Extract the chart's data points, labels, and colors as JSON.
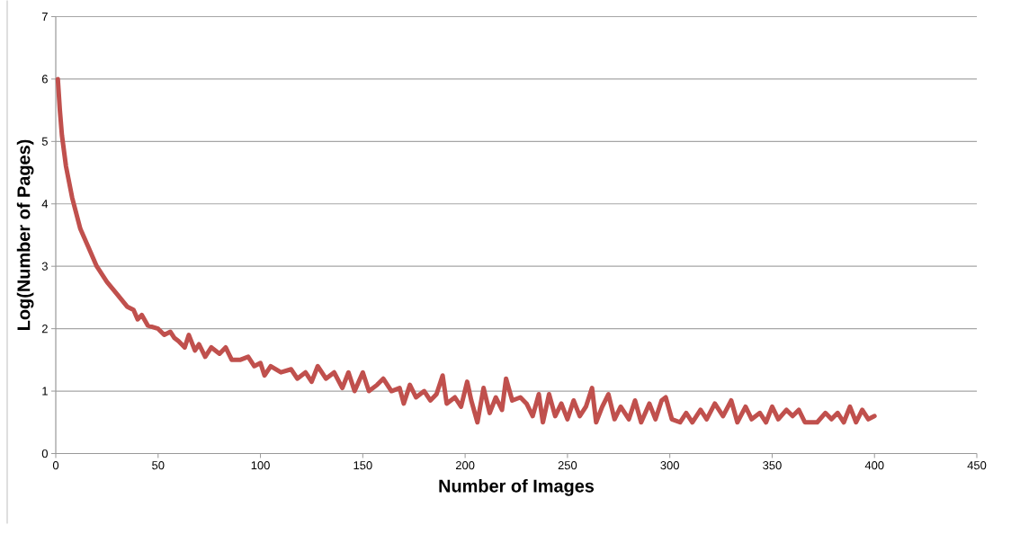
{
  "chart_data": {
    "type": "line",
    "xlabel": "Number of Images",
    "ylabel": "Log(Number of Pages)",
    "xlim": [
      0,
      450
    ],
    "xticks": [
      0,
      50,
      100,
      150,
      200,
      250,
      300,
      350,
      400,
      450
    ],
    "ylim": [
      0,
      7
    ],
    "yticks": [
      0,
      1,
      2,
      3,
      4,
      5,
      6,
      7
    ],
    "grid": "y",
    "marker": "none",
    "line_style": "solid",
    "series": [
      {
        "color": "#c0504d",
        "x": [
          1,
          2,
          3,
          5,
          8,
          12,
          16,
          20,
          25,
          30,
          35,
          38,
          40,
          42,
          45,
          50,
          53,
          56,
          58,
          60,
          63,
          65,
          68,
          70,
          73,
          76,
          80,
          83,
          86,
          90,
          94,
          97,
          100,
          102,
          105,
          110,
          115,
          118,
          122,
          125,
          128,
          132,
          136,
          140,
          143,
          146,
          150,
          153,
          157,
          160,
          164,
          168,
          170,
          173,
          176,
          180,
          183,
          186,
          189,
          191,
          195,
          198,
          201,
          203,
          206,
          209,
          212,
          215,
          218,
          220,
          223,
          227,
          230,
          233,
          236,
          238,
          241,
          244,
          247,
          250,
          253,
          256,
          259,
          262,
          264,
          267,
          270,
          273,
          276,
          280,
          283,
          286,
          290,
          293,
          296,
          298,
          301,
          305,
          308,
          311,
          315,
          318,
          322,
          326,
          330,
          333,
          337,
          340,
          344,
          347,
          350,
          353,
          357,
          360,
          363,
          366,
          372,
          376,
          379,
          382,
          385,
          388,
          391,
          394,
          397,
          400
        ],
        "values": [
          6.0,
          5.5,
          5.1,
          4.6,
          4.1,
          3.6,
          3.3,
          3.0,
          2.75,
          2.55,
          2.35,
          2.3,
          2.15,
          2.22,
          2.05,
          2.0,
          1.9,
          1.95,
          1.85,
          1.8,
          1.7,
          1.9,
          1.65,
          1.75,
          1.55,
          1.7,
          1.6,
          1.7,
          1.5,
          1.5,
          1.55,
          1.4,
          1.45,
          1.25,
          1.4,
          1.3,
          1.35,
          1.2,
          1.3,
          1.15,
          1.4,
          1.2,
          1.3,
          1.05,
          1.3,
          1.0,
          1.3,
          1.0,
          1.1,
          1.2,
          1.0,
          1.05,
          0.8,
          1.1,
          0.9,
          1.0,
          0.85,
          0.95,
          1.25,
          0.8,
          0.9,
          0.75,
          1.15,
          0.85,
          0.5,
          1.05,
          0.65,
          0.9,
          0.7,
          1.2,
          0.85,
          0.9,
          0.8,
          0.6,
          0.95,
          0.5,
          0.95,
          0.6,
          0.8,
          0.55,
          0.85,
          0.6,
          0.75,
          1.05,
          0.5,
          0.75,
          0.95,
          0.55,
          0.75,
          0.55,
          0.85,
          0.5,
          0.8,
          0.55,
          0.85,
          0.9,
          0.55,
          0.5,
          0.65,
          0.5,
          0.7,
          0.55,
          0.8,
          0.6,
          0.85,
          0.5,
          0.75,
          0.55,
          0.65,
          0.5,
          0.75,
          0.55,
          0.7,
          0.6,
          0.7,
          0.5,
          0.5,
          0.65,
          0.55,
          0.65,
          0.5,
          0.75,
          0.5,
          0.7,
          0.55,
          0.6
        ]
      }
    ]
  }
}
